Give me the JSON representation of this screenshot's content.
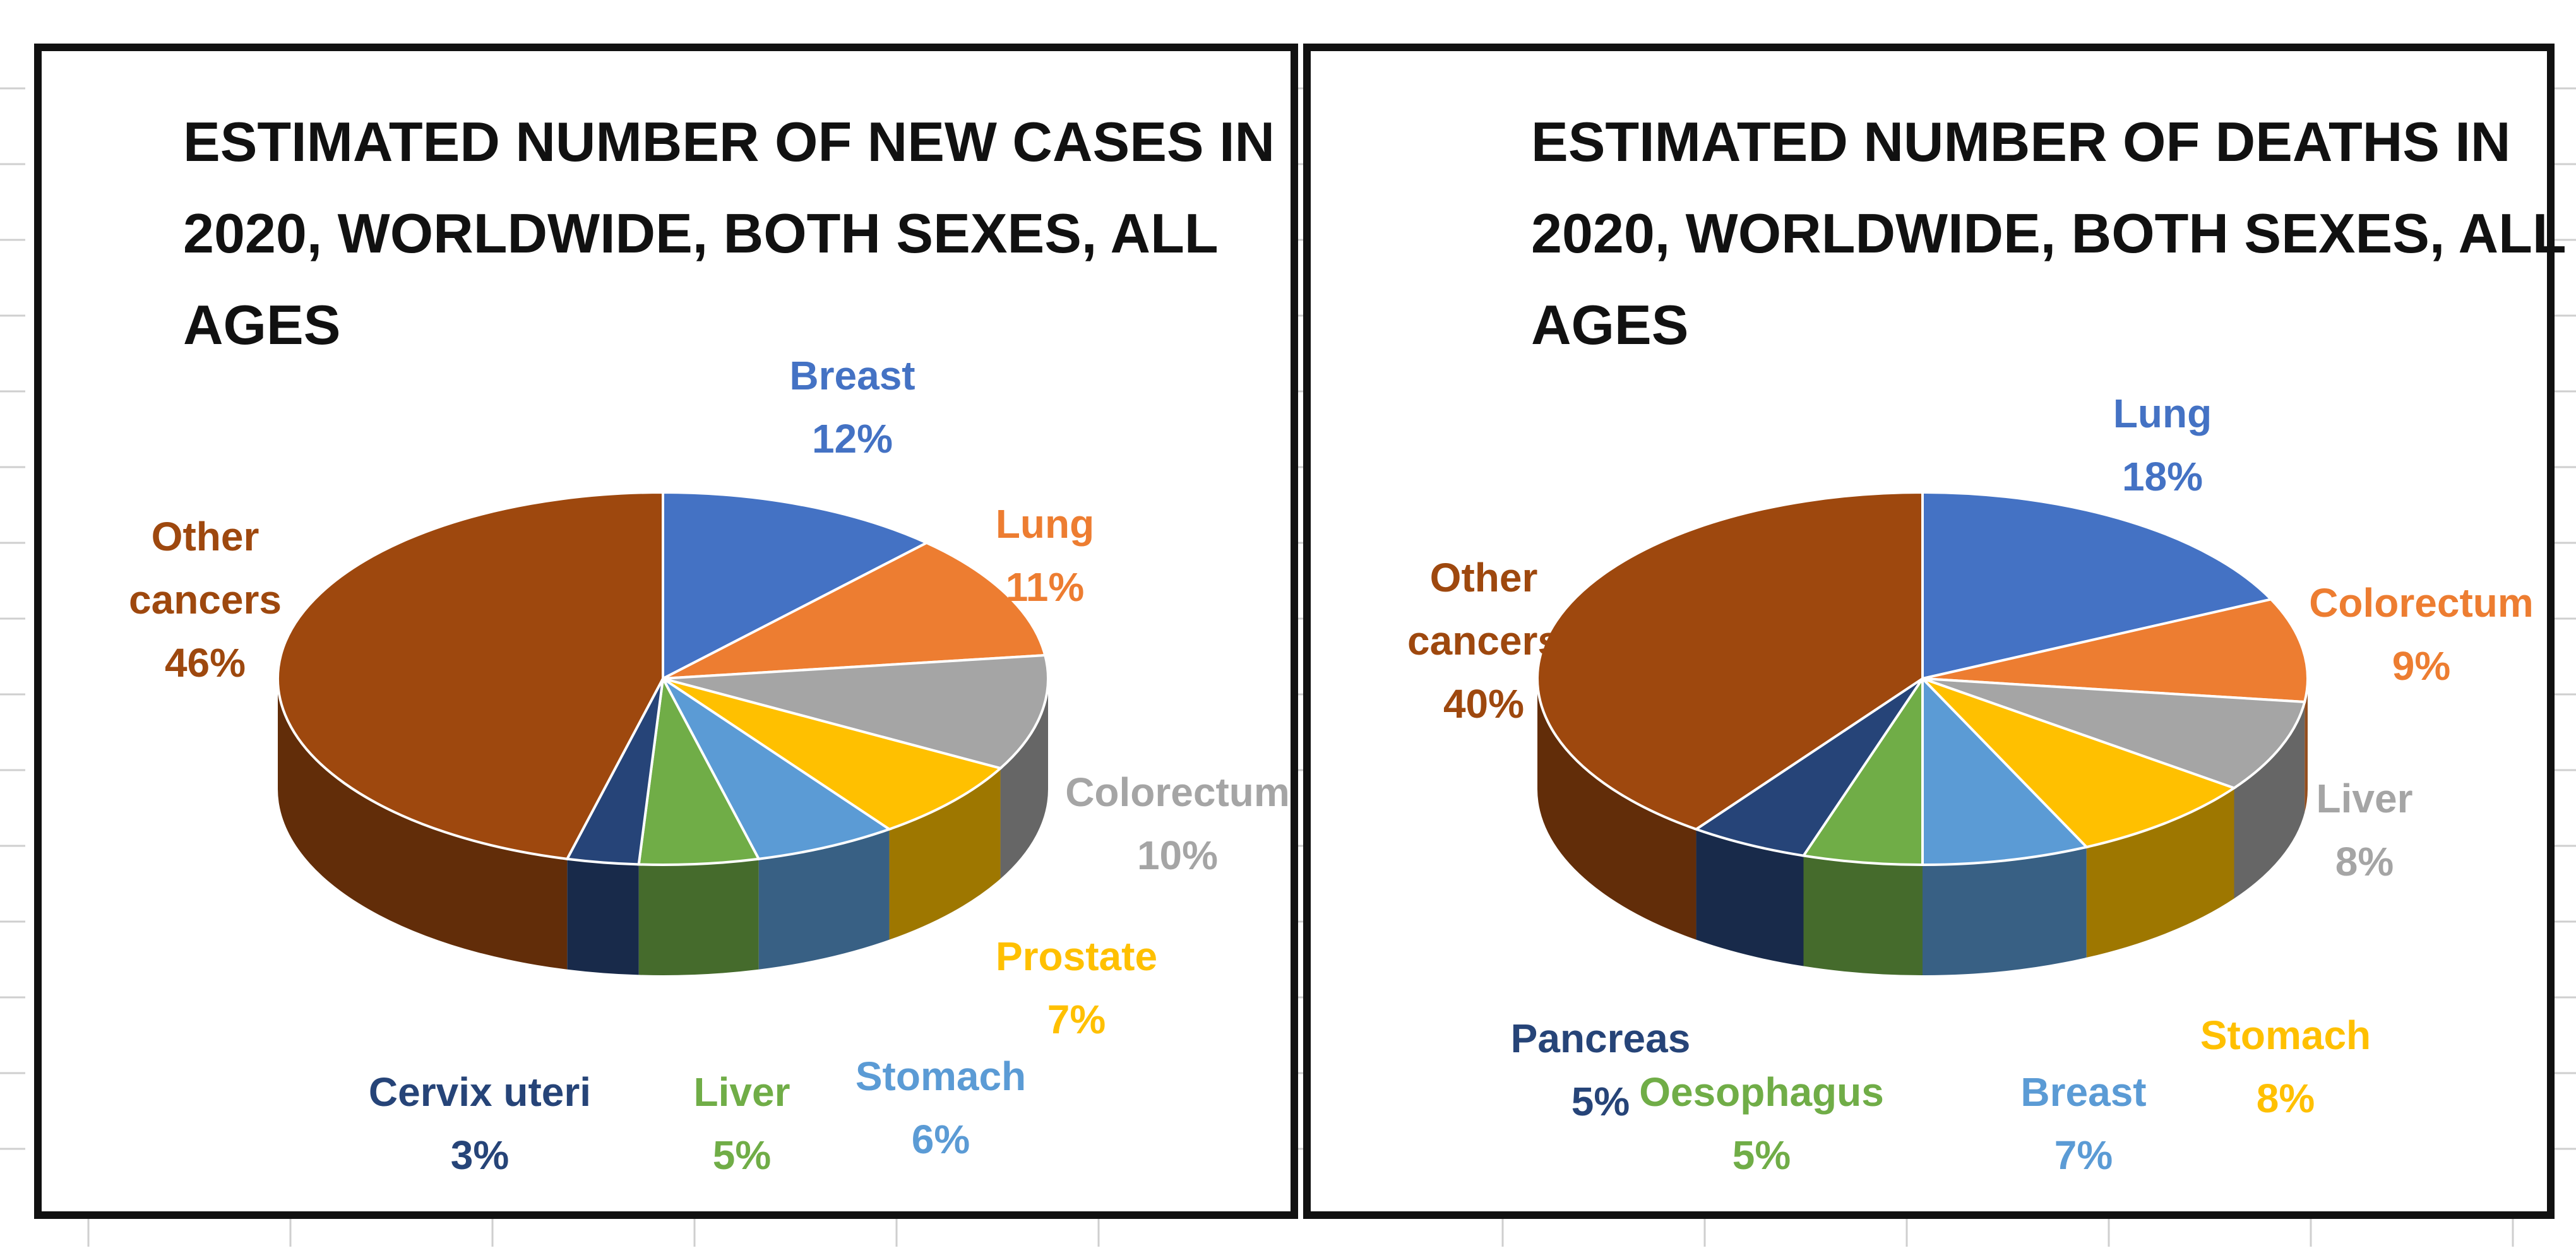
{
  "chart_data": [
    {
      "type": "pie",
      "title": "ESTIMATED NUMBER OF NEW CASES IN 2020, WORLDWIDE, BOTH SEXES, ALL AGES",
      "title_lines": [
        "ESTIMATED NUMBER OF NEW CASES IN",
        "2020, WORLDWIDE, BOTH SEXES, ALL",
        "AGES"
      ],
      "unit": "%",
      "slices": [
        {
          "label": "Breast",
          "value": 12,
          "value_label": "12%",
          "color": "#4472C4"
        },
        {
          "label": "Lung",
          "value": 11,
          "value_label": "11%",
          "color": "#ED7D31"
        },
        {
          "label": "Colorectum",
          "value": 10,
          "value_label": "10%",
          "color": "#A5A5A5"
        },
        {
          "label": "Prostate",
          "value": 7,
          "value_label": "7%",
          "color": "#FFC000"
        },
        {
          "label": "Stomach",
          "value": 6,
          "value_label": "6%",
          "color": "#5B9BD5"
        },
        {
          "label": "Liver",
          "value": 5,
          "value_label": "5%",
          "color": "#70AD47"
        },
        {
          "label": "Cervix uteri",
          "value": 3,
          "value_label": "3%",
          "color": "#264478"
        },
        {
          "label": "Other cancers",
          "value": 46,
          "value_label": "46%",
          "color": "#9E480E"
        }
      ]
    },
    {
      "type": "pie",
      "title": "ESTIMATED NUMBER OF DEATHS IN 2020, WORLDWIDE, BOTH SEXES, ALL AGES",
      "title_lines": [
        "ESTIMATED NUMBER OF DEATHS IN",
        "2020, WORLDWIDE, BOTH SEXES, ALL",
        "AGES"
      ],
      "unit": "%",
      "slices": [
        {
          "label": "Lung",
          "value": 18,
          "value_label": "18%",
          "color": "#4472C4"
        },
        {
          "label": "Colorectum",
          "value": 9,
          "value_label": "9%",
          "color": "#ED7D31"
        },
        {
          "label": "Liver",
          "value": 8,
          "value_label": "8%",
          "color": "#A5A5A5"
        },
        {
          "label": "Stomach",
          "value": 8,
          "value_label": "8%",
          "color": "#FFC000"
        },
        {
          "label": "Breast",
          "value": 7,
          "value_label": "7%",
          "color": "#5B9BD5"
        },
        {
          "label": "Oesophagus",
          "value": 5,
          "value_label": "5%",
          "color": "#70AD47"
        },
        {
          "label": "Pancreas",
          "value": 5,
          "value_label": "5%",
          "color": "#264478"
        },
        {
          "label": "Other cancers",
          "value": 40,
          "value_label": "40%",
          "color": "#9E480E"
        }
      ]
    }
  ]
}
